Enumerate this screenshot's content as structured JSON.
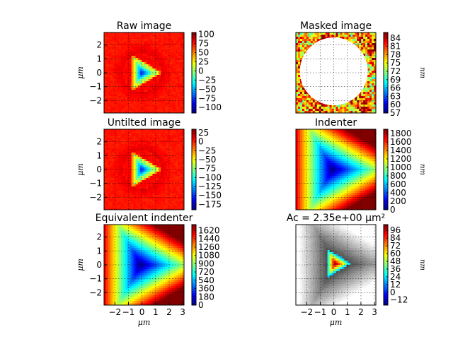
{
  "chart_data": [
    {
      "type": "heatmap",
      "title": "Raw image",
      "xlabel": "",
      "ylabel": "μm",
      "xlim": [
        -2.8,
        3.1
      ],
      "ylim": [
        -2.9,
        2.9
      ],
      "xticks": [],
      "yticks": [
        "2",
        "1",
        "0",
        "−1",
        "−2"
      ],
      "colorbar_ticks": [
        "100",
        "75",
        "50",
        "25",
        "0",
        "−25",
        "−50",
        "−75",
        "−100"
      ],
      "colorbar_range": [
        -115,
        105
      ],
      "colorbar_label": "",
      "cmap": "jet",
      "style": "triangle-raw",
      "mask_circle": false
    },
    {
      "type": "heatmap",
      "title": "Masked image",
      "xlabel": "",
      "ylabel": "",
      "xlim": [
        -2.8,
        3.1
      ],
      "ylim": [
        -2.9,
        2.9
      ],
      "xticks": [],
      "yticks": [],
      "colorbar_ticks": [
        "84",
        "81",
        "78",
        "75",
        "72",
        "69",
        "66",
        "63",
        "60",
        "57"
      ],
      "colorbar_range": [
        57,
        86
      ],
      "colorbar_label": "nm",
      "cmap": "jet",
      "style": "noise",
      "mask_circle": true
    },
    {
      "type": "heatmap",
      "title": "Untilted image",
      "xlabel": "",
      "ylabel": "μm",
      "xlim": [
        -2.8,
        3.1
      ],
      "ylim": [
        -2.9,
        2.9
      ],
      "xticks": [],
      "yticks": [
        "2",
        "1",
        "0",
        "−1",
        "−2"
      ],
      "colorbar_ticks": [
        "25",
        "0",
        "−25",
        "−50",
        "−75",
        "−100",
        "−125",
        "−150",
        "−175"
      ],
      "colorbar_range": [
        -190,
        35
      ],
      "colorbar_label": "",
      "cmap": "jet",
      "style": "triangle-raw",
      "mask_circle": false
    },
    {
      "type": "heatmap",
      "title": "Indenter",
      "xlabel": "",
      "ylabel": "",
      "xlim": [
        -2.8,
        3.1
      ],
      "ylim": [
        -2.9,
        2.9
      ],
      "xticks": [],
      "yticks": [],
      "colorbar_ticks": [
        "1800",
        "1600",
        "1400",
        "1200",
        "1000",
        "800",
        "600",
        "400",
        "200",
        "0"
      ],
      "colorbar_range": [
        0,
        1900
      ],
      "colorbar_label": "nm",
      "cmap": "jet",
      "style": "pyramid",
      "mask_circle": false
    },
    {
      "type": "heatmap",
      "title": "Equivalent indenter",
      "xlabel": "μm",
      "ylabel": "μm",
      "xlim": [
        -2.8,
        3.1
      ],
      "ylim": [
        -2.9,
        2.9
      ],
      "xticks": [
        "−2",
        "−1",
        "0",
        "1",
        "2",
        "3"
      ],
      "yticks": [
        "2",
        "1",
        "0",
        "−1",
        "−2"
      ],
      "colorbar_ticks": [
        "1620",
        "1440",
        "1260",
        "1080",
        "900",
        "720",
        "540",
        "360",
        "180",
        "0"
      ],
      "colorbar_range": [
        0,
        1750
      ],
      "colorbar_label": "",
      "cmap": "jet",
      "style": "pyramid",
      "mask_circle": false
    },
    {
      "type": "heatmap",
      "title": "Ac = 2.35e+00 μm²",
      "xlabel": "μm",
      "ylabel": "",
      "xlim": [
        -2.8,
        3.1
      ],
      "ylim": [
        -2.9,
        2.9
      ],
      "xticks": [
        "−2",
        "−1",
        "0",
        "1",
        "2",
        "3"
      ],
      "yticks": [],
      "colorbar_ticks": [
        "96",
        "84",
        "72",
        "60",
        "48",
        "36",
        "24",
        "12",
        "0",
        "−12"
      ],
      "colorbar_range": [
        -20,
        105
      ],
      "colorbar_label": "nm",
      "cmap": "jet",
      "style": "contact",
      "mask_circle": false
    }
  ]
}
